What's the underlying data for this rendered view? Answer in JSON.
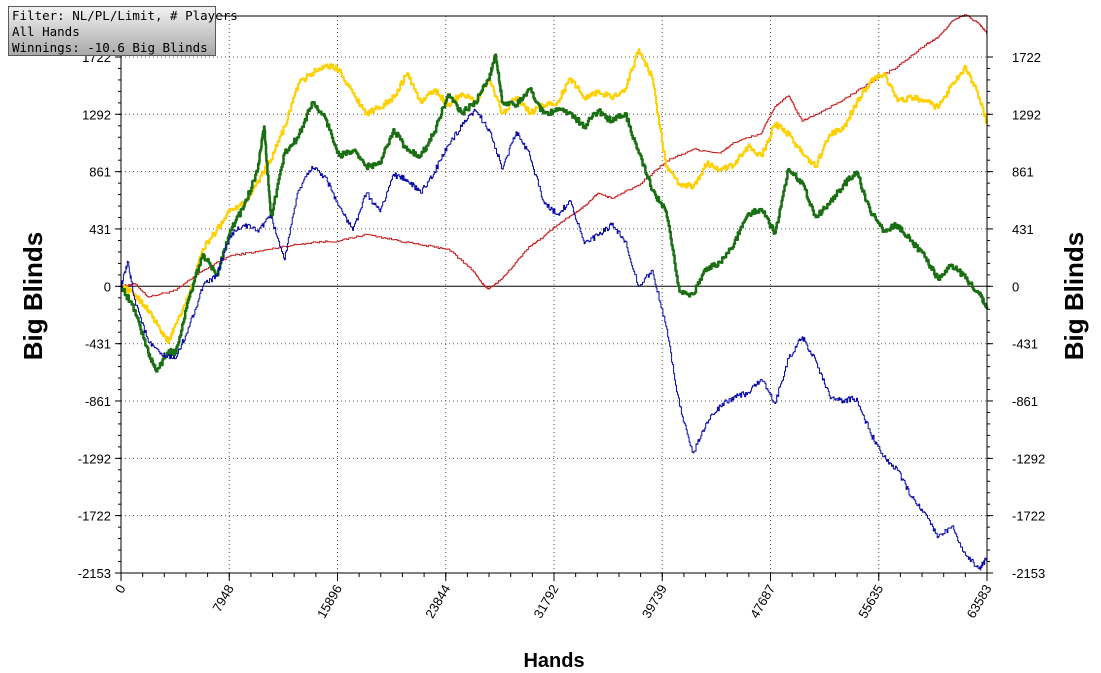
{
  "filter_box": {
    "line1": "Filter: NL/PL/Limit, # Players",
    "line2": "All Hands",
    "line3": "Winnings: -10.6 Big Blinds"
  },
  "chart_data": {
    "type": "line",
    "title": "",
    "xlabel": "Hands",
    "ylabel": "Big Blinds",
    "xlim": [
      0,
      63583
    ],
    "ylim": [
      -2153,
      2153
    ],
    "x_ticks": [
      0,
      7948,
      15896,
      23844,
      31792,
      39739,
      47687,
      55635,
      63583
    ],
    "y_ticks": [
      -2153,
      -1722,
      -1292,
      -861,
      -431,
      0,
      431,
      861,
      1292,
      1722
    ],
    "grid": true,
    "legend": "none",
    "series": [
      {
        "color": "#c81818",
        "points": [
          [
            0,
            0
          ],
          [
            1000,
            20
          ],
          [
            2000,
            -80
          ],
          [
            4000,
            -30
          ],
          [
            6000,
            120
          ],
          [
            8000,
            230
          ],
          [
            10000,
            260
          ],
          [
            12000,
            300
          ],
          [
            14000,
            330
          ],
          [
            16000,
            340
          ],
          [
            18000,
            390
          ],
          [
            20000,
            350
          ],
          [
            22000,
            310
          ],
          [
            24000,
            280
          ],
          [
            26000,
            100
          ],
          [
            26500,
            20
          ],
          [
            27000,
            -20
          ],
          [
            28000,
            60
          ],
          [
            29000,
            180
          ],
          [
            30000,
            300
          ],
          [
            31000,
            370
          ],
          [
            32000,
            460
          ],
          [
            33000,
            530
          ],
          [
            34000,
            600
          ],
          [
            35000,
            700
          ],
          [
            36000,
            660
          ],
          [
            38000,
            760
          ],
          [
            40000,
            940
          ],
          [
            42000,
            1030
          ],
          [
            44000,
            1000
          ],
          [
            45000,
            1080
          ],
          [
            47000,
            1150
          ],
          [
            48000,
            1350
          ],
          [
            49000,
            1430
          ],
          [
            50000,
            1240
          ],
          [
            51000,
            1290
          ],
          [
            53000,
            1400
          ],
          [
            55000,
            1530
          ],
          [
            57000,
            1650
          ],
          [
            59000,
            1810
          ],
          [
            60000,
            1870
          ],
          [
            61000,
            1990
          ],
          [
            62000,
            2040
          ],
          [
            63000,
            1970
          ],
          [
            63583,
            1900
          ]
        ]
      },
      {
        "color": "#ffd000",
        "points": [
          [
            0,
            0
          ],
          [
            1000,
            -60
          ],
          [
            2000,
            -180
          ],
          [
            3000,
            -350
          ],
          [
            3500,
            -420
          ],
          [
            4000,
            -280
          ],
          [
            5000,
            -60
          ],
          [
            6000,
            280
          ],
          [
            7000,
            420
          ],
          [
            8000,
            580
          ],
          [
            9000,
            620
          ],
          [
            10000,
            780
          ],
          [
            11000,
            950
          ],
          [
            12000,
            1200
          ],
          [
            13000,
            1520
          ],
          [
            14000,
            1600
          ],
          [
            15000,
            1660
          ],
          [
            16000,
            1630
          ],
          [
            17000,
            1450
          ],
          [
            18000,
            1300
          ],
          [
            19000,
            1340
          ],
          [
            20000,
            1420
          ],
          [
            21000,
            1600
          ],
          [
            22000,
            1380
          ],
          [
            23000,
            1480
          ],
          [
            24000,
            1360
          ],
          [
            25000,
            1450
          ],
          [
            26000,
            1380
          ],
          [
            27000,
            1560
          ],
          [
            28000,
            1300
          ],
          [
            29000,
            1420
          ],
          [
            30000,
            1300
          ],
          [
            31000,
            1360
          ],
          [
            32000,
            1380
          ],
          [
            33000,
            1560
          ],
          [
            34000,
            1420
          ],
          [
            35000,
            1460
          ],
          [
            36000,
            1420
          ],
          [
            37000,
            1480
          ],
          [
            38000,
            1780
          ],
          [
            39000,
            1560
          ],
          [
            40000,
            900
          ],
          [
            41000,
            760
          ],
          [
            42000,
            750
          ],
          [
            43000,
            920
          ],
          [
            44000,
            880
          ],
          [
            45000,
            910
          ],
          [
            46000,
            1050
          ],
          [
            47000,
            980
          ],
          [
            48000,
            1220
          ],
          [
            49000,
            1140
          ],
          [
            50000,
            1000
          ],
          [
            51000,
            900
          ],
          [
            52000,
            1140
          ],
          [
            53000,
            1180
          ],
          [
            54000,
            1380
          ],
          [
            55000,
            1540
          ],
          [
            56000,
            1600
          ],
          [
            57000,
            1390
          ],
          [
            58000,
            1420
          ],
          [
            59000,
            1390
          ],
          [
            60000,
            1340
          ],
          [
            61000,
            1520
          ],
          [
            62000,
            1650
          ],
          [
            63000,
            1420
          ],
          [
            63583,
            1220
          ]
        ]
      },
      {
        "color": "#1a6f12",
        "points": [
          [
            0,
            0
          ],
          [
            1000,
            -180
          ],
          [
            2000,
            -500
          ],
          [
            2600,
            -640
          ],
          [
            3500,
            -480
          ],
          [
            4000,
            -500
          ],
          [
            5000,
            -80
          ],
          [
            6000,
            240
          ],
          [
            7000,
            80
          ],
          [
            8000,
            420
          ],
          [
            9000,
            600
          ],
          [
            10000,
            860
          ],
          [
            10500,
            1200
          ],
          [
            11000,
            520
          ],
          [
            12000,
            1000
          ],
          [
            13000,
            1120
          ],
          [
            14000,
            1380
          ],
          [
            15000,
            1260
          ],
          [
            16000,
            980
          ],
          [
            17000,
            1020
          ],
          [
            18000,
            900
          ],
          [
            19000,
            920
          ],
          [
            20000,
            1180
          ],
          [
            21000,
            1020
          ],
          [
            22000,
            980
          ],
          [
            23000,
            1160
          ],
          [
            24000,
            1440
          ],
          [
            25000,
            1300
          ],
          [
            26000,
            1380
          ],
          [
            27000,
            1560
          ],
          [
            27500,
            1740
          ],
          [
            28000,
            1380
          ],
          [
            29000,
            1360
          ],
          [
            30000,
            1480
          ],
          [
            31000,
            1300
          ],
          [
            32000,
            1320
          ],
          [
            33000,
            1300
          ],
          [
            34000,
            1200
          ],
          [
            35000,
            1320
          ],
          [
            36000,
            1240
          ],
          [
            37000,
            1300
          ],
          [
            38000,
            1000
          ],
          [
            39000,
            720
          ],
          [
            40000,
            560
          ],
          [
            41000,
            -40
          ],
          [
            42000,
            -60
          ],
          [
            43000,
            140
          ],
          [
            44000,
            180
          ],
          [
            45000,
            320
          ],
          [
            46000,
            540
          ],
          [
            47000,
            580
          ],
          [
            48000,
            400
          ],
          [
            49000,
            880
          ],
          [
            50000,
            780
          ],
          [
            51000,
            520
          ],
          [
            52000,
            620
          ],
          [
            53000,
            760
          ],
          [
            54000,
            860
          ],
          [
            55000,
            560
          ],
          [
            56000,
            420
          ],
          [
            57000,
            460
          ],
          [
            58000,
            340
          ],
          [
            59000,
            220
          ],
          [
            60000,
            50
          ],
          [
            61000,
            160
          ],
          [
            62000,
            60
          ],
          [
            63000,
            -60
          ],
          [
            63583,
            -150
          ]
        ]
      },
      {
        "color": "#0a0aa8",
        "points": [
          [
            0,
            0
          ],
          [
            500,
            180
          ],
          [
            1000,
            -100
          ],
          [
            2000,
            -420
          ],
          [
            3000,
            -520
          ],
          [
            4000,
            -540
          ],
          [
            5000,
            -300
          ],
          [
            6000,
            0
          ],
          [
            7000,
            80
          ],
          [
            8000,
            380
          ],
          [
            9000,
            460
          ],
          [
            10000,
            420
          ],
          [
            11000,
            520
          ],
          [
            12000,
            200
          ],
          [
            13000,
            720
          ],
          [
            14000,
            900
          ],
          [
            15000,
            820
          ],
          [
            16000,
            600
          ],
          [
            17000,
            420
          ],
          [
            18000,
            700
          ],
          [
            19000,
            560
          ],
          [
            20000,
            840
          ],
          [
            21000,
            800
          ],
          [
            22000,
            700
          ],
          [
            23000,
            860
          ],
          [
            24000,
            1060
          ],
          [
            25000,
            1200
          ],
          [
            26000,
            1320
          ],
          [
            27000,
            1180
          ],
          [
            28000,
            880
          ],
          [
            29000,
            1160
          ],
          [
            30000,
            980
          ],
          [
            31000,
            640
          ],
          [
            32000,
            540
          ],
          [
            33000,
            640
          ],
          [
            34000,
            320
          ],
          [
            35000,
            380
          ],
          [
            36000,
            460
          ],
          [
            37000,
            340
          ],
          [
            38000,
            0
          ],
          [
            39000,
            120
          ],
          [
            40000,
            -300
          ],
          [
            41000,
            -900
          ],
          [
            42000,
            -1250
          ],
          [
            43000,
            -1020
          ],
          [
            44000,
            -900
          ],
          [
            45000,
            -830
          ],
          [
            46000,
            -800
          ],
          [
            47000,
            -700
          ],
          [
            48000,
            -880
          ],
          [
            49000,
            -540
          ],
          [
            50000,
            -380
          ],
          [
            51000,
            -560
          ],
          [
            52000,
            -820
          ],
          [
            53000,
            -860
          ],
          [
            54000,
            -840
          ],
          [
            55000,
            -1100
          ],
          [
            56000,
            -1280
          ],
          [
            57000,
            -1380
          ],
          [
            58000,
            -1580
          ],
          [
            59000,
            -1700
          ],
          [
            60000,
            -1880
          ],
          [
            61000,
            -1800
          ],
          [
            62000,
            -2020
          ],
          [
            63000,
            -2120
          ],
          [
            63583,
            -2040
          ]
        ]
      }
    ]
  }
}
